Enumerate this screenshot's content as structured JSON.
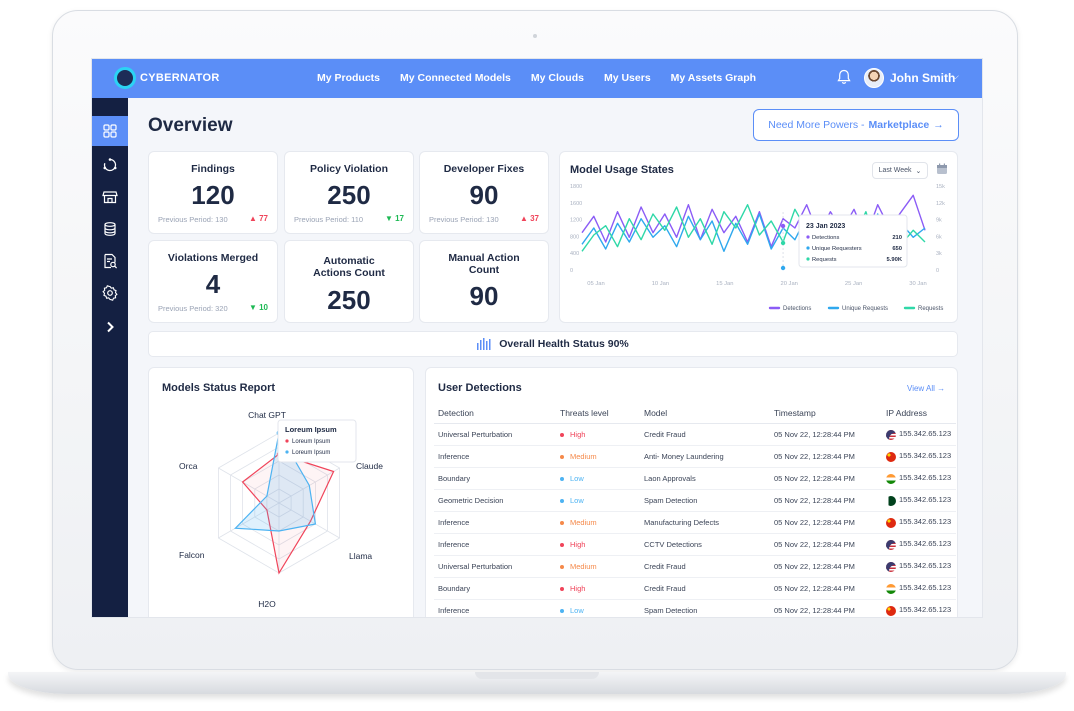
{
  "brand": {
    "name": "CYBERNATOR"
  },
  "nav": {
    "items": [
      "My Products",
      "My Connected Models",
      "My Clouds",
      "My Users",
      "My Assets Graph"
    ]
  },
  "user": {
    "name": "John Smith"
  },
  "page": {
    "title": "Overview"
  },
  "marketplace": {
    "label": "Need More Powers -",
    "link": "Marketplace",
    "arrow": "→"
  },
  "stats": [
    {
      "label": "Findings",
      "value": "120",
      "prev": "Previous Period: 130",
      "delta": "77",
      "trend": "up"
    },
    {
      "label": "Policy Violation",
      "value": "250",
      "prev": "Previous Period: 110",
      "delta": "17",
      "trend": "down"
    },
    {
      "label": "Developer Fixes",
      "value": "90",
      "prev": "Previous Period: 130",
      "delta": "37",
      "trend": "up"
    },
    {
      "label": "Violations Merged",
      "value": "4",
      "prev": "Previous Period: 320",
      "delta": "10",
      "trend": "down"
    },
    {
      "label": "Automatic Actions Count",
      "value": "250"
    },
    {
      "label": "Manual Action Count",
      "value": "90"
    }
  ],
  "usage": {
    "title": "Model Usage States",
    "period": "Last Week",
    "tooltip": {
      "date": "23 Jan 2023",
      "rows": [
        {
          "label": "Detections",
          "value": "210"
        },
        {
          "label": "Unique Requesters",
          "value": "650"
        },
        {
          "label": "Requests",
          "value": "5.90K"
        }
      ]
    }
  },
  "chart_data": [
    {
      "type": "line",
      "title": "Model Usage States",
      "x_ticks": [
        "05 Jan",
        "10 Jan",
        "15 Jan",
        "20 Jan",
        "25 Jan",
        "30 Jan"
      ],
      "y_left_ticks": [
        "1800",
        "1600",
        "1200",
        "800",
        "400",
        "0"
      ],
      "y_right_ticks": [
        "15k",
        "12k",
        "9k",
        "6k",
        "3k",
        "0"
      ],
      "ylim": [
        0,
        1800
      ],
      "legend_position": "bottom-right",
      "series": [
        {
          "name": "Detections",
          "color": "#8b5cf6",
          "values": [
            800,
            1150,
            600,
            1250,
            700,
            1350,
            800,
            1200,
            700,
            1400,
            650,
            1300,
            800,
            1150,
            600,
            1250,
            500,
            1100,
            900,
            1400,
            750,
            1250,
            850,
            1300,
            700,
            1400,
            900,
            1250,
            1600,
            850
          ]
        },
        {
          "name": "Unique Requests",
          "color": "#2fa8ee",
          "values": [
            550,
            900,
            450,
            1000,
            600,
            1100,
            700,
            950,
            500,
            1150,
            650,
            1050,
            400,
            1000,
            550,
            1200,
            450,
            900,
            650,
            1150,
            350,
            950,
            800,
            1100,
            600,
            1200,
            450,
            1000,
            700,
            900
          ]
        },
        {
          "name": "Requests",
          "color": "#2fd8a8",
          "values": [
            400,
            750,
            950,
            500,
            1100,
            650,
            1200,
            850,
            1350,
            700,
            1100,
            550,
            1250,
            900,
            1400,
            750,
            1050,
            600,
            1300,
            850,
            1150,
            500,
            1050,
            700,
            1250,
            450,
            950,
            550,
            850,
            600
          ]
        }
      ]
    },
    {
      "type": "radar",
      "title": "Models Status Report",
      "categories": [
        "Chat GPT",
        "Claude",
        "Llama",
        "H2O",
        "Falcon",
        "Orca"
      ],
      "max": 5,
      "series": [
        {
          "name": "Loreum Ipsum",
          "color": "#f0445a",
          "values": [
            3.5,
            4.5,
            2.6,
            5.0,
            1.0,
            3.0
          ]
        },
        {
          "name": "Loreum Ipsum",
          "color": "#4db3f2",
          "values": [
            5.0,
            2.5,
            3.0,
            2.0,
            3.6,
            1.0
          ]
        }
      ]
    }
  ],
  "radar_tooltip": {
    "title": "Loreum Ipsum",
    "rows": [
      "Loreum Ipsum",
      "Loreum Ipsum"
    ]
  },
  "health": {
    "label": "Overall Health Status 90%"
  },
  "models_report": {
    "title": "Models Status Report"
  },
  "detections": {
    "title": "User Detections",
    "view_all": "View All →",
    "columns": [
      "Detection",
      "Threats level",
      "Model",
      "Timestamp",
      "IP Address"
    ],
    "rows": [
      {
        "detection": "Universal Perturbation",
        "level": "High",
        "model": "Credit Fraud",
        "time": "05 Nov 22, 12:28:44 PM",
        "ip": "155.342.65.123",
        "flag": "us"
      },
      {
        "detection": "Inference",
        "level": "Medium",
        "model": "Anti- Money Laundering",
        "time": "05 Nov 22, 12:28:44 PM",
        "ip": "155.342.65.123",
        "flag": "cn"
      },
      {
        "detection": "Boundary",
        "level": "Low",
        "model": "Laon Approvals",
        "time": "05 Nov 22, 12:28:44 PM",
        "ip": "155.342.65.123",
        "flag": "in"
      },
      {
        "detection": "Geometric Decision",
        "level": "Low",
        "model": "Spam Detection",
        "time": "05 Nov 22, 12:28:44 PM",
        "ip": "155.342.65.123",
        "flag": "pk"
      },
      {
        "detection": "Inference",
        "level": "Medium",
        "model": "Manufacturing Defects",
        "time": "05 Nov 22, 12:28:44 PM",
        "ip": "155.342.65.123",
        "flag": "cn"
      },
      {
        "detection": "Inference",
        "level": "High",
        "model": "CCTV Detections",
        "time": "05 Nov 22, 12:28:44 PM",
        "ip": "155.342.65.123",
        "flag": "us"
      },
      {
        "detection": "Universal Perturbation",
        "level": "Medium",
        "model": "Credit Fraud",
        "time": "05 Nov 22, 12:28:44 PM",
        "ip": "155.342.65.123",
        "flag": "us"
      },
      {
        "detection": "Boundary",
        "level": "High",
        "model": "Credit Fraud",
        "time": "05 Nov 22, 12:28:44 PM",
        "ip": "155.342.65.123",
        "flag": "in"
      },
      {
        "detection": "Inference",
        "level": "Low",
        "model": "Spam Detection",
        "time": "05 Nov 22, 12:28:44 PM",
        "ip": "155.342.65.123",
        "flag": "cn"
      }
    ]
  },
  "level_colors": {
    "High": "#f0445a",
    "Medium": "#f5894a",
    "Low": "#4db3f2"
  },
  "sidebar": {
    "icons": [
      "dashboard-icon",
      "refresh-cycle-icon",
      "store-icon",
      "database-icon",
      "report-search-icon",
      "settings-icon",
      "chevron-right-icon"
    ]
  }
}
